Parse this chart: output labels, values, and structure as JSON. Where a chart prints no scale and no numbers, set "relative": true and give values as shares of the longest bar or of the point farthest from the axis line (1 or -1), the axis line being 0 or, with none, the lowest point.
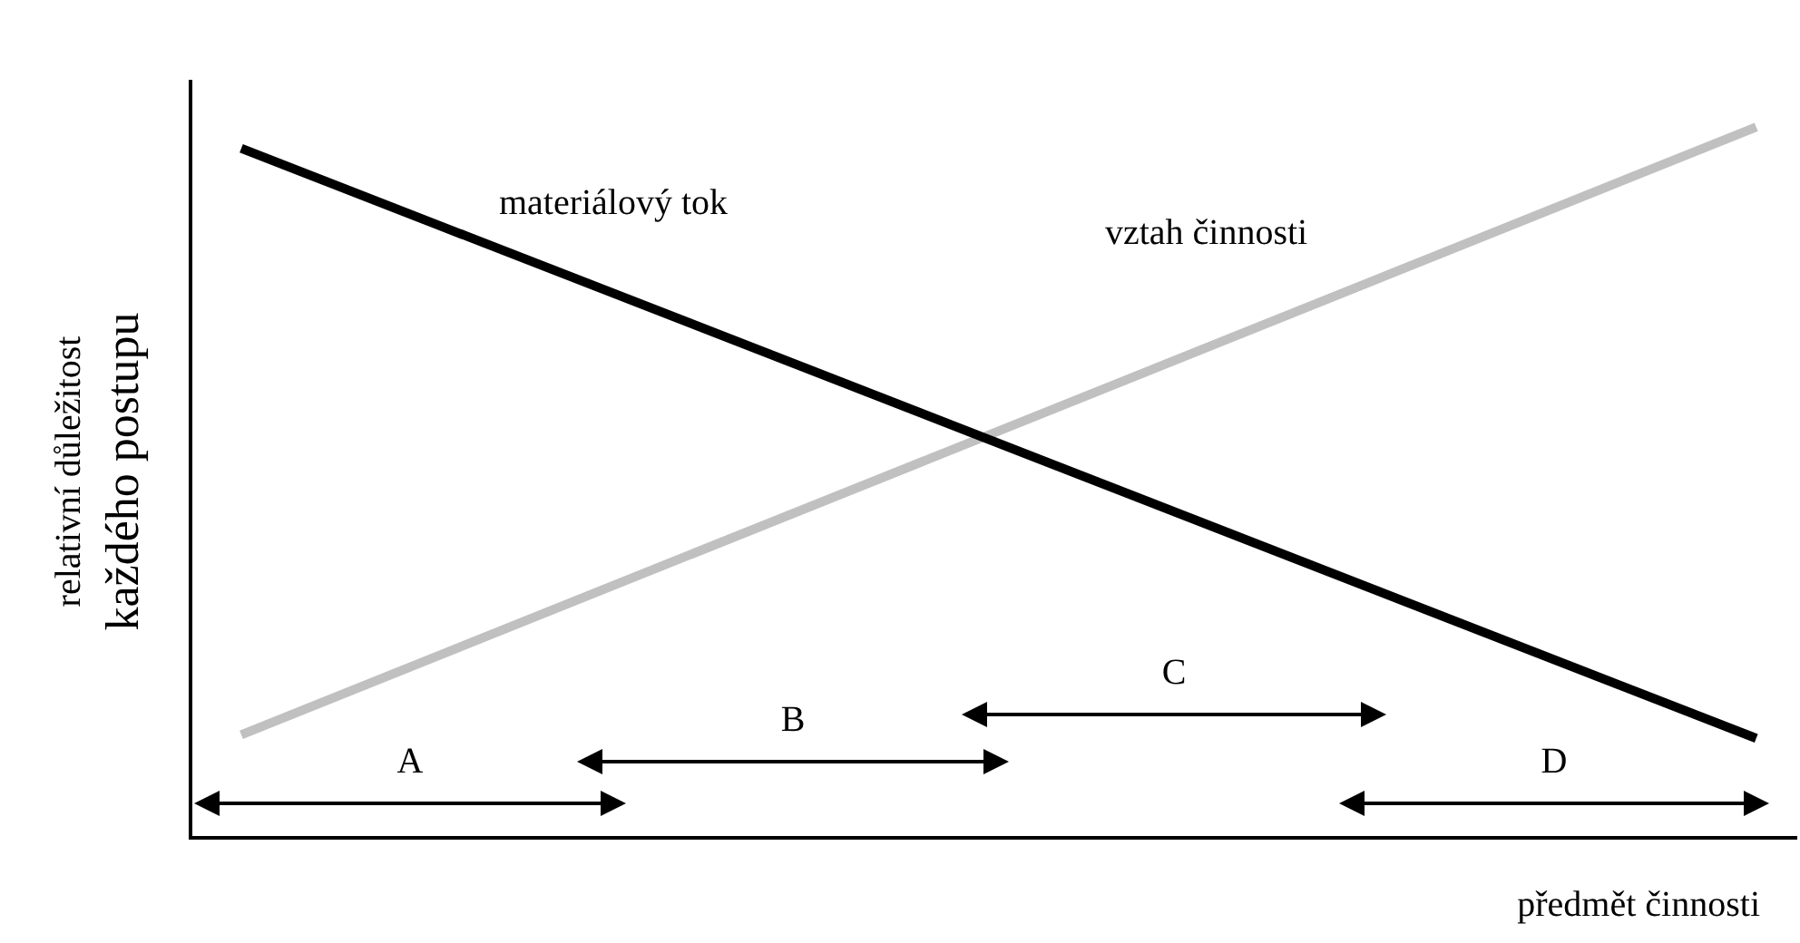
{
  "chart_data": {
    "type": "line",
    "relative": true,
    "categories": [
      null,
      null
    ],
    "series": [
      {
        "name": "materiálový tok",
        "color": "#000000",
        "values": [
          0.97,
          0.14
        ]
      },
      {
        "name": "vztah činnosti",
        "color": "#c0c0c0",
        "values": [
          0.145,
          1
        ]
      }
    ],
    "xlabel": "předmět činnosti",
    "ylabel": "relativní důležitost\nkaždého postupu",
    "annotations": [
      "A",
      "B",
      "C",
      "D"
    ],
    "marker": "none",
    "line_style": "solid",
    "grid": false,
    "legend": false
  }
}
